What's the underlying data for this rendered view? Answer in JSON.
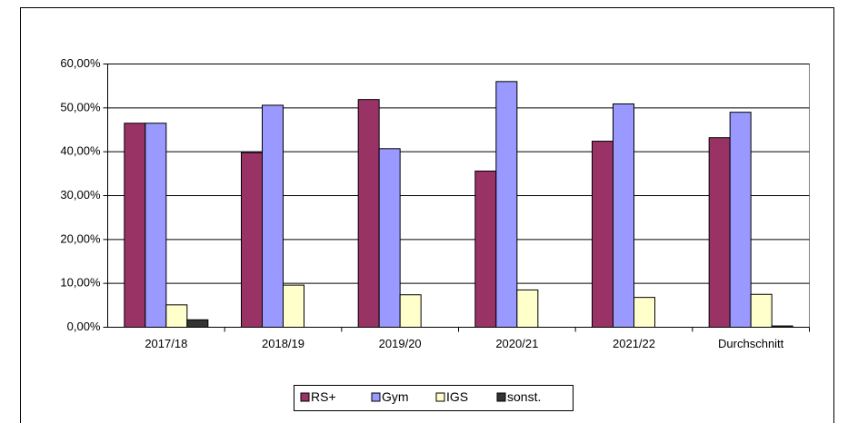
{
  "chart_data": {
    "type": "bar",
    "categories": [
      "2017/18",
      "2018/19",
      "2019/20",
      "2020/21",
      "2021/22",
      "Durchschnitt"
    ],
    "series": [
      {
        "name": "RS+",
        "color": "#993366",
        "values": [
          46.5,
          39.8,
          51.9,
          35.6,
          42.4,
          43.2
        ]
      },
      {
        "name": "Gym",
        "color": "#9999ff",
        "values": [
          46.5,
          50.6,
          40.7,
          56.0,
          50.9,
          49.0
        ]
      },
      {
        "name": "IGS",
        "color": "#ffffcc",
        "values": [
          5.1,
          9.6,
          7.4,
          8.5,
          6.8,
          7.5
        ]
      },
      {
        "name": "sonst.",
        "color": "#333333",
        "values": [
          1.7,
          0,
          0,
          0,
          0,
          0.3
        ]
      }
    ],
    "ylim": [
      0,
      60
    ],
    "yticks": [
      {
        "value": 0,
        "label": "0,00%"
      },
      {
        "value": 10,
        "label": "10,00%"
      },
      {
        "value": 20,
        "label": "20,00%"
      },
      {
        "value": 30,
        "label": "30,00%"
      },
      {
        "value": 40,
        "label": "40,00%"
      },
      {
        "value": 50,
        "label": "50,00%"
      },
      {
        "value": 60,
        "label": "60,00%"
      }
    ],
    "grid": true,
    "legend": "bottom"
  }
}
